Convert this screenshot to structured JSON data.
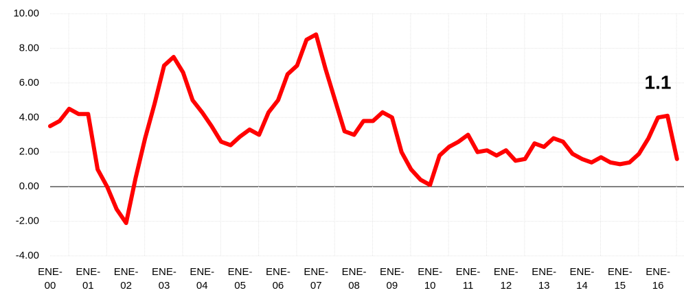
{
  "chart_data": {
    "type": "line",
    "categories": [
      "ENE-00",
      null,
      null,
      null,
      "ENE-01",
      null,
      null,
      null,
      "ENE-02",
      null,
      null,
      null,
      "ENE-03",
      null,
      null,
      null,
      "ENE-04",
      null,
      null,
      null,
      "ENE-05",
      null,
      null,
      null,
      "ENE-06",
      null,
      null,
      null,
      "ENE-07",
      null,
      null,
      null,
      "ENE-08",
      null,
      null,
      null,
      "ENE-09",
      null,
      null,
      null,
      "ENE-10",
      null,
      null,
      null,
      "ENE-11",
      null,
      null,
      null,
      "ENE-12",
      null,
      null,
      null,
      "ENE-13",
      null,
      null,
      null,
      "ENE-14",
      null,
      null,
      null,
      "ENE-15",
      null,
      null,
      null,
      "ENE-16",
      null,
      null
    ],
    "series": [
      {
        "color": "#ff0000",
        "values": [
          3.5,
          3.8,
          4.5,
          4.2,
          4.2,
          1.0,
          0.0,
          -1.3,
          -2.1,
          0.5,
          2.8,
          4.8,
          7.0,
          7.5,
          6.6,
          5.0,
          4.3,
          3.5,
          2.6,
          2.4,
          2.9,
          3.3,
          3.0,
          4.3,
          5.0,
          6.5,
          7.0,
          8.5,
          8.8,
          6.8,
          5.0,
          3.2,
          3.0,
          3.8,
          3.8,
          4.3,
          4.0,
          2.0,
          1.0,
          0.4,
          0.1,
          1.8,
          2.3,
          2.6,
          3.0,
          2.0,
          2.1,
          1.8,
          2.1,
          1.5,
          1.6,
          2.5,
          2.3,
          2.8,
          2.6,
          1.9,
          1.6,
          1.4,
          1.7,
          1.4,
          1.3,
          1.4,
          1.9,
          2.8,
          4.0,
          4.1,
          1.6
        ]
      }
    ],
    "ylim": [
      -4,
      10
    ],
    "yticks": [
      {
        "value": -4,
        "label": "-4.00"
      },
      {
        "value": -2,
        "label": "-2.00"
      },
      {
        "value": 0,
        "label": "0.00"
      },
      {
        "value": 2,
        "label": "2.00"
      },
      {
        "value": 4,
        "label": "4.00"
      },
      {
        "value": 6,
        "label": "6.00"
      },
      {
        "value": 8,
        "label": "8.00"
      },
      {
        "value": 10,
        "label": "10.00"
      }
    ],
    "grid": true,
    "annotation": "1.1"
  }
}
